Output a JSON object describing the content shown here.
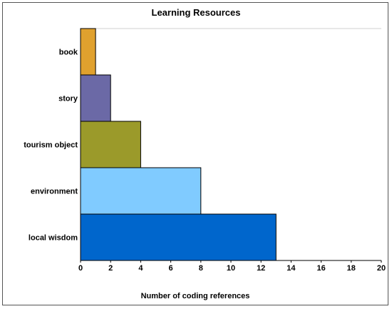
{
  "chart_data": {
    "type": "bar",
    "orientation": "horizontal",
    "title": "Learning Resources",
    "xlabel": "Number of coding references",
    "ylabel": "",
    "categories": [
      "book",
      "story",
      "tourism object",
      "environment",
      "local wisdom"
    ],
    "values": [
      1,
      2,
      4,
      8,
      13
    ],
    "colors": [
      "#E0A12E",
      "#6B69A6",
      "#9B9A2A",
      "#80CBFF",
      "#0066CC"
    ],
    "xlim": [
      0,
      20
    ],
    "xticks": [
      "0",
      "2",
      "4",
      "6",
      "8",
      "10",
      "12",
      "14",
      "16",
      "18",
      "20"
    ],
    "grid": false,
    "legend": "none"
  }
}
